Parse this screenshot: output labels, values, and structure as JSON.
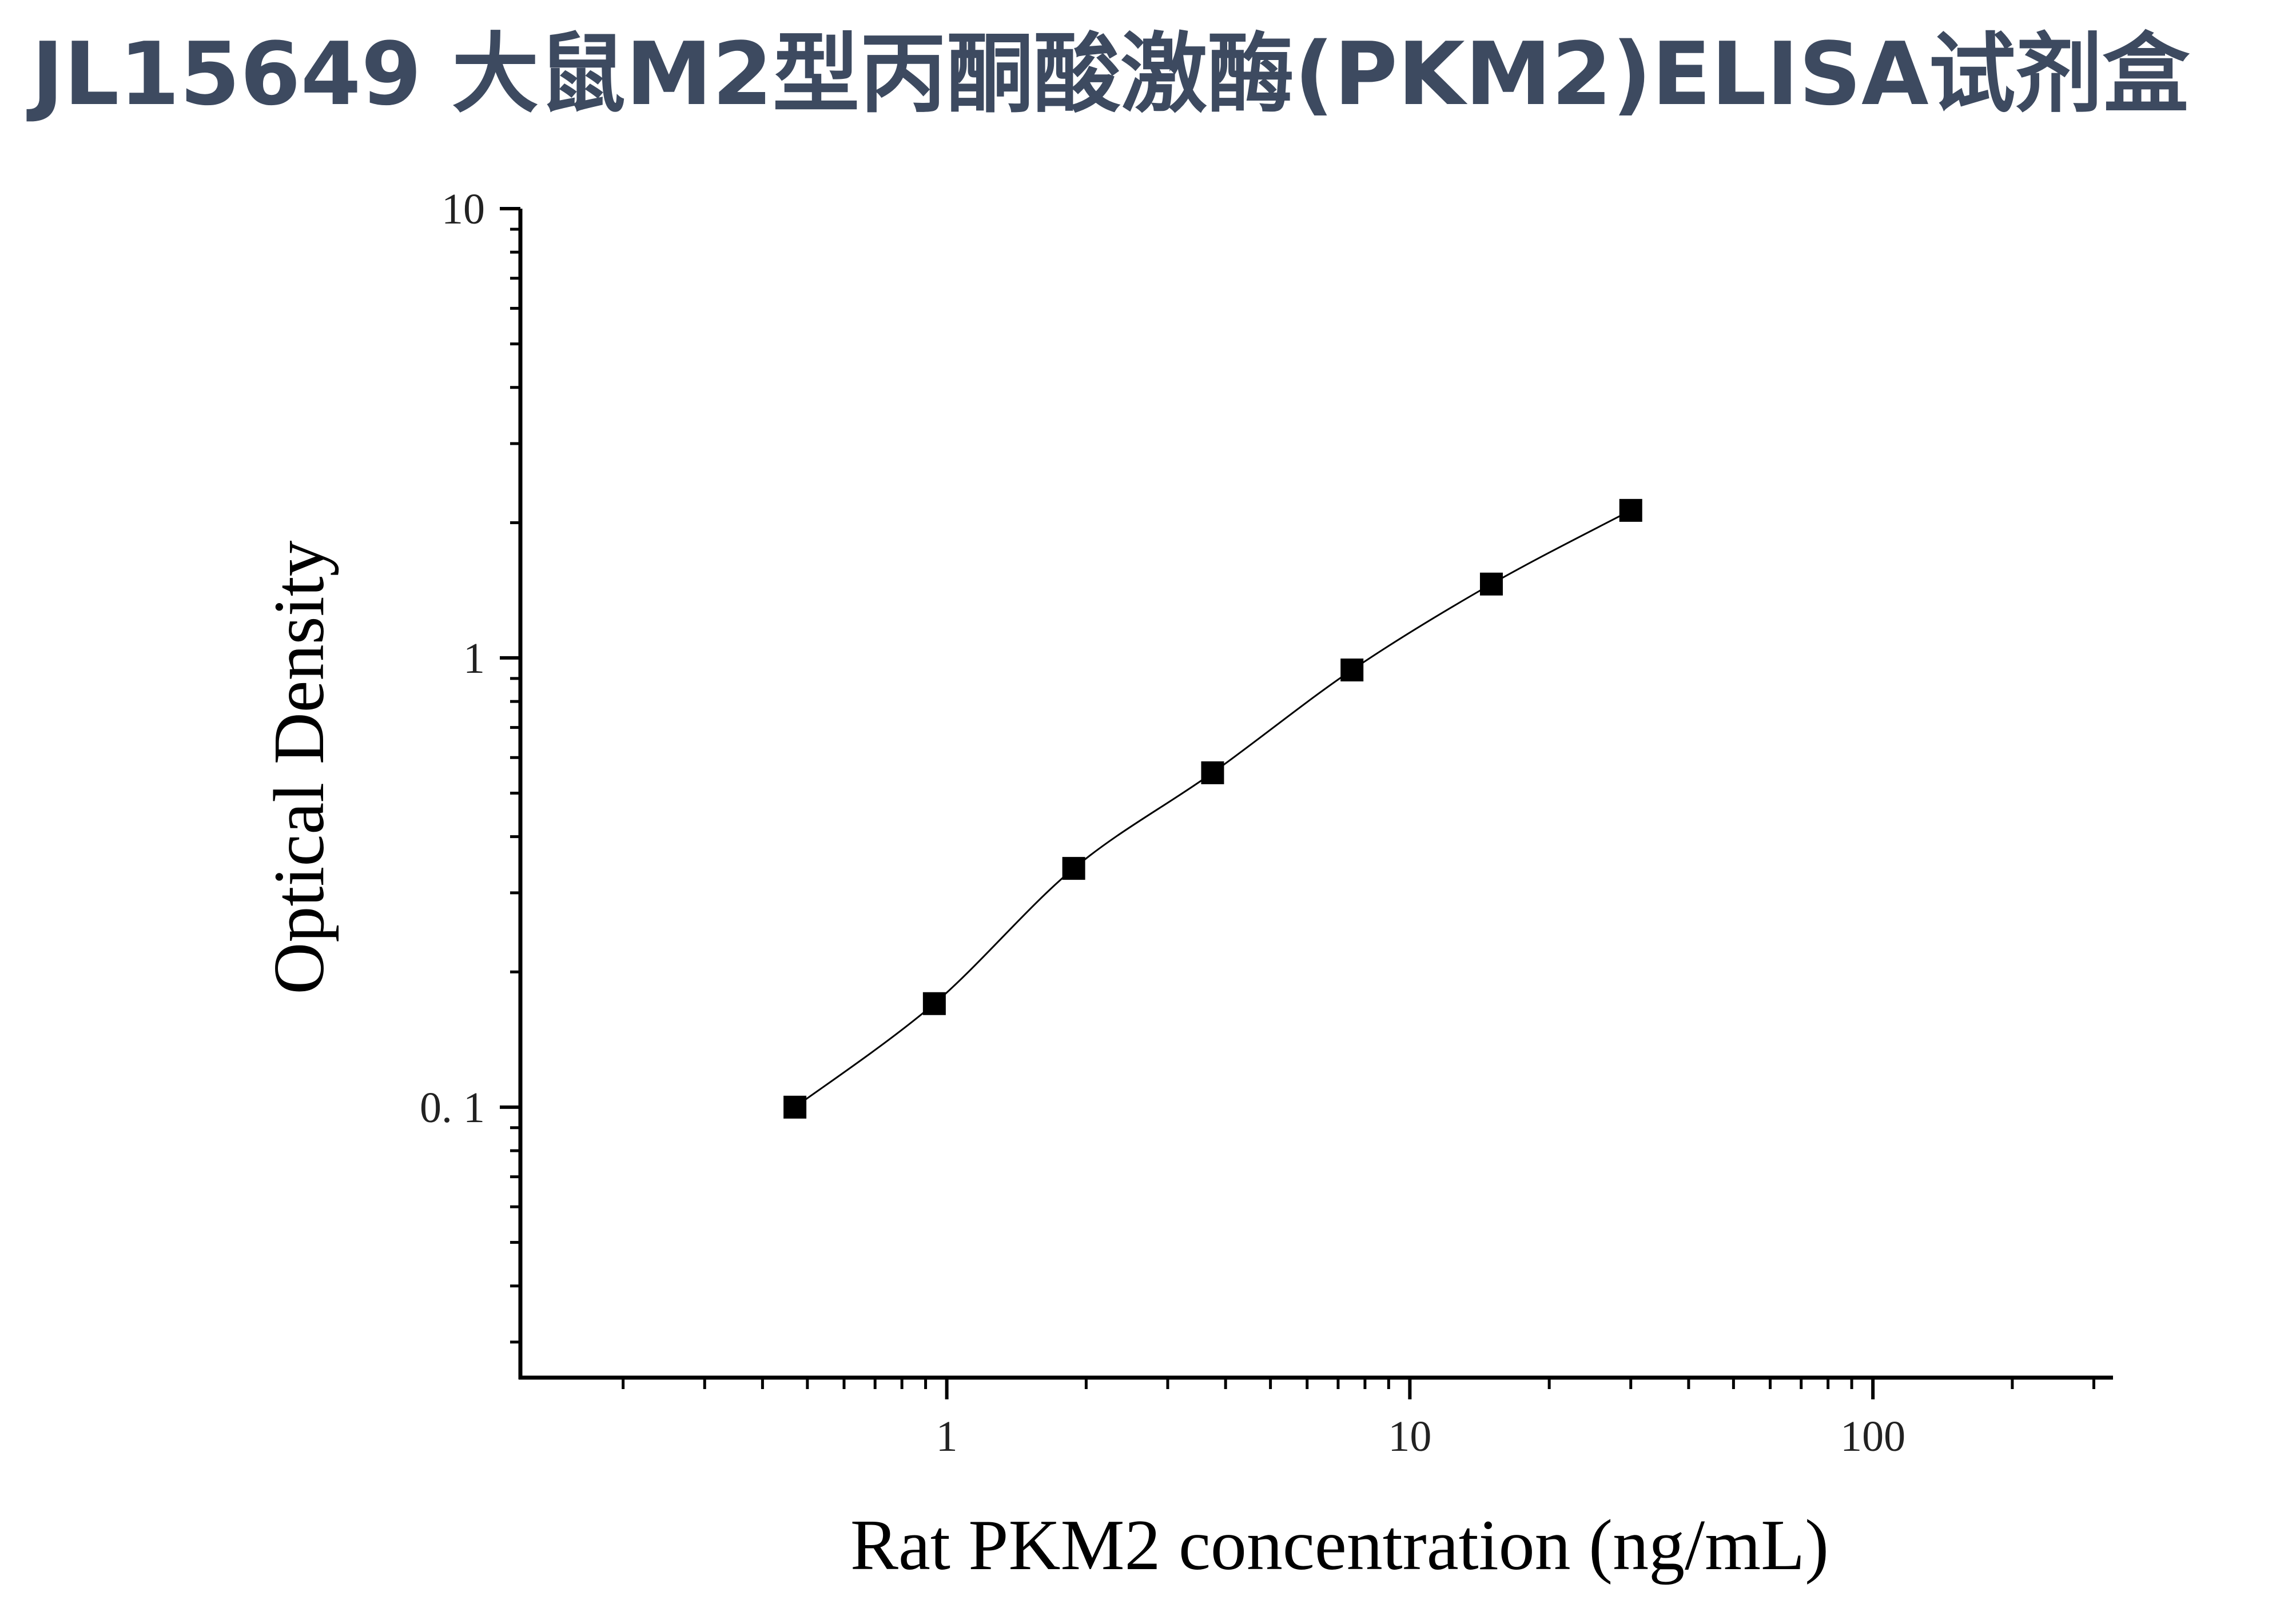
{
  "title": "JL15649 大鼠M2型丙酮酸激酶(PKM2)ELISA试剂盒",
  "colors": {
    "title": "#3d4a60",
    "axis": "#000000",
    "marker": "#000000"
  },
  "chart_data": {
    "type": "scatter",
    "xlabel": "Rat PKM2 concentration (ng/mL)",
    "ylabel": "Optical Density",
    "x_scale": "log",
    "y_scale": "log",
    "xlim": [
      0.12,
      330
    ],
    "ylim": [
      0.025,
      10
    ],
    "x_ticks": [
      {
        "value": 1,
        "label": "1"
      },
      {
        "value": 10,
        "label": "10"
      },
      {
        "value": 100,
        "label": "100"
      }
    ],
    "y_ticks": [
      {
        "value": 0.1,
        "label": "0. 1"
      },
      {
        "value": 1,
        "label": "1"
      },
      {
        "value": 10,
        "label": "10"
      }
    ],
    "grid": false,
    "legend": "none",
    "series": [
      {
        "marker": "square",
        "fit_line": true,
        "points": [
          {
            "x": 0.47,
            "y": 0.1
          },
          {
            "x": 0.94,
            "y": 0.17
          },
          {
            "x": 1.88,
            "y": 0.34
          },
          {
            "x": 3.75,
            "y": 0.555
          },
          {
            "x": 7.5,
            "y": 0.94
          },
          {
            "x": 15,
            "y": 1.46
          },
          {
            "x": 30,
            "y": 2.13
          }
        ]
      }
    ]
  }
}
